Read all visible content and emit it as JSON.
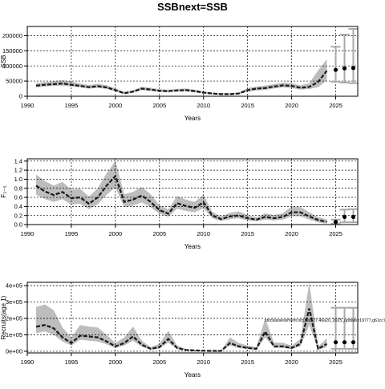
{
  "title": "SSBnext=SSB",
  "colors": {
    "band": "#bdbdbd",
    "line": "#1a1a1a",
    "proj_bar": "#a9a9a9",
    "grid": "#000000"
  },
  "chart_data": [
    {
      "type": "line",
      "ylabel": "SSB",
      "xlabel": "Years",
      "xlim": [
        1990,
        2027.5
      ],
      "ylim": [
        0,
        230000
      ],
      "x_ticks": [
        1990,
        1995,
        2000,
        2005,
        2010,
        2015,
        2020,
        2025
      ],
      "y_ticks": [
        0,
        50000,
        100000,
        150000,
        200000
      ],
      "y_tick_labels": [
        "0",
        "50000",
        "100000",
        "150000",
        "200000"
      ],
      "grid": true,
      "years": [
        1991,
        1992,
        1993,
        1994,
        1995,
        1996,
        1997,
        1998,
        1999,
        2000,
        2001,
        2002,
        2003,
        2004,
        2005,
        2006,
        2007,
        2008,
        2009,
        2010,
        2011,
        2012,
        2013,
        2014,
        2015,
        2016,
        2017,
        2018,
        2019,
        2020,
        2021,
        2022,
        2023,
        2024
      ],
      "estimate": [
        35000,
        38000,
        40000,
        42000,
        38000,
        34000,
        30000,
        33000,
        29000,
        20000,
        10000,
        15000,
        25000,
        22000,
        18000,
        17000,
        19000,
        20000,
        17000,
        12000,
        9000,
        7000,
        7000,
        9000,
        20000,
        25000,
        27000,
        32000,
        36000,
        34000,
        28000,
        31000,
        47000,
        84000
      ],
      "lower": [
        29000,
        32000,
        34000,
        35000,
        32000,
        29000,
        25000,
        28000,
        24000,
        16000,
        7000,
        12000,
        20000,
        18000,
        14000,
        13000,
        15000,
        16000,
        13000,
        9000,
        6500,
        5000,
        5000,
        6500,
        15000,
        19000,
        21000,
        26000,
        29000,
        27000,
        22000,
        24000,
        30000,
        52000
      ],
      "upper": [
        43000,
        47000,
        50000,
        53000,
        48000,
        42000,
        37000,
        41000,
        36000,
        26000,
        14000,
        20000,
        31000,
        28000,
        23000,
        22000,
        24000,
        26000,
        22000,
        16000,
        12000,
        10000,
        10000,
        12000,
        27000,
        32000,
        35000,
        40000,
        45000,
        43000,
        36000,
        43000,
        85000,
        122000
      ],
      "projection": {
        "years": [
          2025,
          2026,
          2027
        ],
        "median": [
          87000,
          92000,
          93000
        ],
        "lower": [
          48000,
          45000,
          43000
        ],
        "upper": [
          163000,
          203000,
          222000
        ]
      }
    },
    {
      "type": "line",
      "ylabel": "F₂₋₅",
      "xlabel": "Years",
      "xlim": [
        1990,
        2027.5
      ],
      "ylim": [
        0,
        1.45
      ],
      "x_ticks": [
        1990,
        1995,
        2000,
        2005,
        2010,
        2015,
        2020,
        2025
      ],
      "y_ticks": [
        0,
        0.2,
        0.4,
        0.6,
        0.8,
        1.0,
        1.2,
        1.4
      ],
      "y_tick_labels": [
        "0.0",
        "0.2",
        "0.4",
        "0.6",
        "0.8",
        "1.0",
        "1.2",
        "1.4"
      ],
      "grid": true,
      "years": [
        1991,
        1992,
        1993,
        1994,
        1995,
        1996,
        1997,
        1998,
        1999,
        2000,
        2001,
        2002,
        2003,
        2004,
        2005,
        2006,
        2007,
        2008,
        2009,
        2010,
        2011,
        2012,
        2013,
        2014,
        2015,
        2016,
        2017,
        2018,
        2019,
        2020,
        2021,
        2022,
        2023,
        2024
      ],
      "estimate": [
        0.86,
        0.73,
        0.65,
        0.72,
        0.58,
        0.6,
        0.46,
        0.6,
        0.86,
        1.07,
        0.5,
        0.55,
        0.64,
        0.5,
        0.32,
        0.24,
        0.47,
        0.41,
        0.37,
        0.49,
        0.2,
        0.12,
        0.18,
        0.2,
        0.14,
        0.11,
        0.17,
        0.14,
        0.17,
        0.27,
        0.27,
        0.18,
        0.1,
        0.06
      ],
      "lower": [
        0.66,
        0.56,
        0.5,
        0.56,
        0.44,
        0.46,
        0.34,
        0.45,
        0.66,
        0.82,
        0.38,
        0.42,
        0.49,
        0.38,
        0.24,
        0.17,
        0.35,
        0.3,
        0.27,
        0.36,
        0.14,
        0.08,
        0.12,
        0.14,
        0.09,
        0.07,
        0.11,
        0.09,
        0.11,
        0.18,
        0.18,
        0.11,
        0.05,
        0.02
      ],
      "upper": [
        1.1,
        0.96,
        0.86,
        0.94,
        0.77,
        0.79,
        0.62,
        0.8,
        1.13,
        1.4,
        0.67,
        0.72,
        0.83,
        0.67,
        0.43,
        0.33,
        0.63,
        0.55,
        0.5,
        0.66,
        0.28,
        0.18,
        0.26,
        0.29,
        0.21,
        0.16,
        0.25,
        0.21,
        0.25,
        0.4,
        0.39,
        0.27,
        0.17,
        0.11
      ],
      "projection": {
        "years": [
          2025,
          2026,
          2027
        ],
        "median": [
          0.06,
          0.17,
          0.17
        ],
        "lower": [
          0.02,
          0.05,
          0.05
        ],
        "upper": [
          0.11,
          0.33,
          0.34
        ]
      }
    },
    {
      "type": "line",
      "ylabel": "Recruits(age 1)",
      "xlabel": "Years",
      "xlim": [
        1990,
        2027.5
      ],
      "ylim": [
        -10000,
        420000
      ],
      "x_ticks": [
        1990,
        1995,
        2000,
        2005,
        2010,
        2015,
        2020,
        2025
      ],
      "y_ticks": [
        0,
        100000,
        200000,
        300000,
        400000
      ],
      "y_tick_labels": [
        "0e+00",
        "1e+05",
        "2e+05",
        "3e+05",
        "4e+05"
      ],
      "grid": true,
      "annotation": "stockassessment.org,had.27.46a20_2025_update,r19777,g61cc7a0",
      "years": [
        1991,
        1992,
        1993,
        1994,
        1995,
        1996,
        1997,
        1998,
        1999,
        2000,
        2001,
        2002,
        2003,
        2004,
        2005,
        2006,
        2007,
        2008,
        2009,
        2010,
        2011,
        2012,
        2013,
        2014,
        2015,
        2016,
        2017,
        2018,
        2019,
        2020,
        2021,
        2022,
        2023,
        2024
      ],
      "estimate": [
        150000,
        160000,
        140000,
        85000,
        50000,
        95000,
        90000,
        85000,
        60000,
        30000,
        50000,
        90000,
        40000,
        15000,
        25000,
        75000,
        20000,
        8000,
        5000,
        3000,
        2000,
        2000,
        50000,
        30000,
        20000,
        15000,
        120000,
        30000,
        30000,
        20000,
        45000,
        260000,
        15000,
        45000
      ],
      "lower": [
        110000,
        120000,
        100000,
        60000,
        35000,
        70000,
        65000,
        60000,
        42000,
        20000,
        35000,
        65000,
        28000,
        8000,
        17000,
        52000,
        13000,
        4000,
        2500,
        1500,
        1000,
        1000,
        35000,
        20000,
        13000,
        9000,
        85000,
        20000,
        20000,
        13000,
        30000,
        160000,
        8000,
        25000
      ],
      "upper": [
        270000,
        285000,
        250000,
        145000,
        85000,
        160000,
        150000,
        145000,
        100000,
        50000,
        85000,
        150000,
        65000,
        25000,
        45000,
        125000,
        35000,
        14000,
        9000,
        5000,
        3500,
        3500,
        85000,
        50000,
        35000,
        25000,
        200000,
        52000,
        52000,
        35000,
        75000,
        420000,
        28000,
        80000
      ],
      "projection": {
        "years": [
          2025,
          2026,
          2027
        ],
        "median": [
          55000,
          55000,
          55000
        ],
        "lower": [
          15000,
          15000,
          15000
        ],
        "upper": [
          265000,
          265000,
          265000
        ]
      }
    }
  ]
}
